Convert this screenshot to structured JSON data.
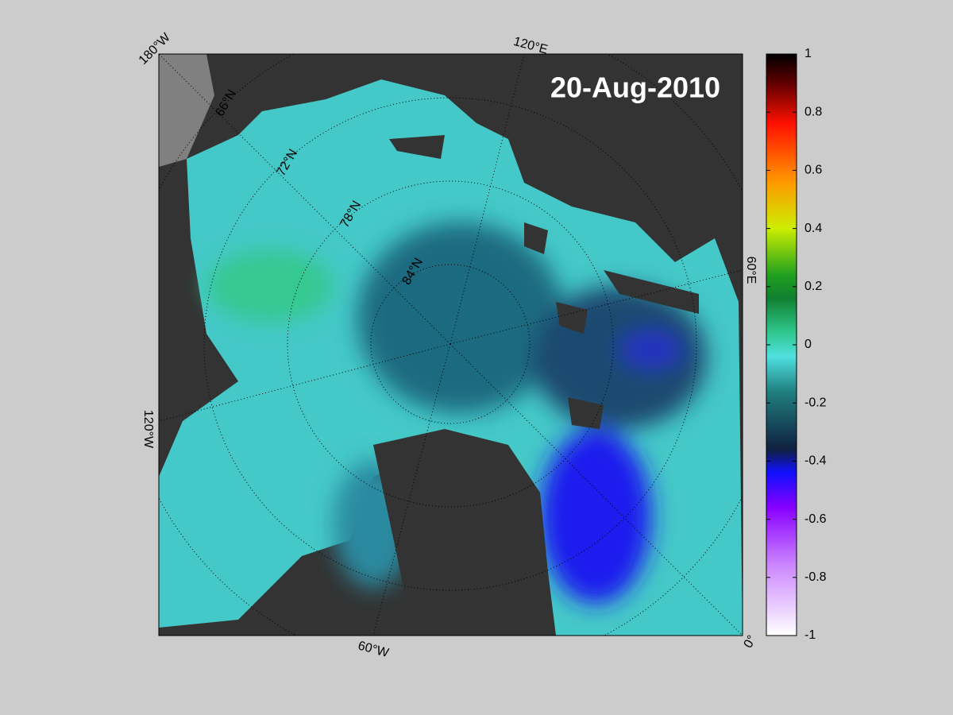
{
  "map": {
    "title": "20-Aug-2010",
    "longitude_labels": [
      "180°W",
      "120°E",
      "60°E",
      "0°",
      "60°W",
      "120°W"
    ],
    "latitude_labels": [
      "66°N",
      "72°N",
      "78°N",
      "84°N"
    ]
  },
  "colorbar": {
    "lim": [
      -1,
      1
    ],
    "ticks": [
      1,
      0.8,
      0.6,
      0.4,
      0.2,
      0,
      -0.2,
      -0.4,
      -0.6,
      -0.8,
      -1
    ]
  }
}
